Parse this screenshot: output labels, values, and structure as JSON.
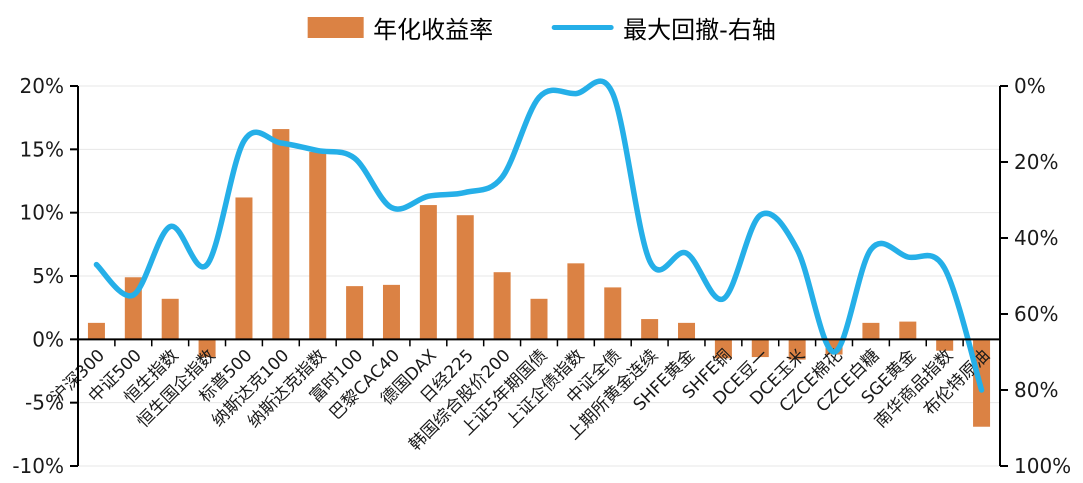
{
  "legend": {
    "bar_label": "年化收益率",
    "line_label": "最大回撤-右轴"
  },
  "chart_data": {
    "type": "bar+line combo, dual axis",
    "categories": [
      "沪深300",
      "中证500",
      "恒生指数",
      "恒生国企指数",
      "标普500",
      "纳斯达克100",
      "纳斯达克指数",
      "富时100",
      "巴黎CAC40",
      "德国DAX",
      "日经225",
      "韩国综合股价200",
      "上证5年期国债",
      "上证企债指数",
      "中证全债",
      "上期所黄金连续",
      "SHFE黄金",
      "SHFE铜",
      "DCE豆一",
      "DCE玉米",
      "CZCE棉花",
      "CZCE白糖",
      "SGE黄金",
      "南华商品指数",
      "布伦特原油"
    ],
    "series": [
      {
        "name": "年化收益率",
        "type": "bar",
        "axis": "left",
        "color": "#DB8244",
        "values": [
          1.3,
          4.9,
          3.2,
          -1.4,
          11.2,
          16.6,
          14.8,
          4.2,
          4.3,
          10.6,
          9.8,
          5.3,
          3.2,
          6.0,
          4.1,
          1.6,
          1.3,
          -1.5,
          -1.4,
          -1.6,
          -1.2,
          1.3,
          1.4,
          -0.9,
          -6.9
        ]
      },
      {
        "name": "最大回撤-右轴",
        "type": "line",
        "axis": "right",
        "color": "#25AFE8",
        "smooth": true,
        "values": [
          47,
          55,
          37,
          47,
          14.5,
          15,
          17,
          19,
          32,
          29,
          28,
          24,
          3,
          2,
          2,
          46,
          44,
          56,
          34,
          43,
          70,
          43,
          45,
          48,
          80
        ]
      }
    ],
    "left_axis": {
      "min": -10,
      "max": 20,
      "step": 5,
      "unit": "%",
      "labels": [
        "20%",
        "15%",
        "10%",
        "5%",
        "0%",
        "-5%",
        "-10%"
      ]
    },
    "right_axis": {
      "min": 0,
      "max": 100,
      "step": 20,
      "unit": "%",
      "inverted": true,
      "labels": [
        "0%",
        "20%",
        "40%",
        "60%",
        "80%",
        "100%"
      ]
    },
    "grid": true,
    "legend_position": "top-center",
    "x_label_rotation": 45
  },
  "style": {
    "grid_color": "#E7E7E7",
    "axis_color": "#000000",
    "text_color": "#1a1a1a"
  }
}
